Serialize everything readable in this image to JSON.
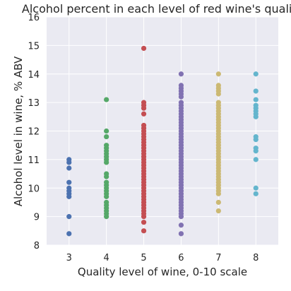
{
  "chart_data": {
    "type": "scatter",
    "title": "Alcohol percent in each level of red wine's quality",
    "xlabel": "Quality level of wine, 0-10 scale",
    "ylabel": "Alcohol level in wine, % ABV",
    "xlim": [
      2.4,
      8.6
    ],
    "ylim": [
      8,
      16
    ],
    "xticks": [
      "3",
      "4",
      "5",
      "6",
      "7",
      "8"
    ],
    "yticks": [
      "8",
      "9",
      "10",
      "11",
      "12",
      "13",
      "14",
      "15",
      "16"
    ],
    "grid": true,
    "legend": "none",
    "series": [
      {
        "x": 3,
        "color": "#4c72b0",
        "values": [
          8.4,
          9.0,
          9.7,
          9.8,
          9.9,
          10.0,
          10.2,
          10.7,
          10.9,
          11.0
        ]
      },
      {
        "x": 4,
        "color": "#55a868",
        "values": [
          9.0,
          9.1,
          9.2,
          9.3,
          9.4,
          9.5,
          9.7,
          9.8,
          9.9,
          10.0,
          10.1,
          10.2,
          10.4,
          10.5,
          10.9,
          11.0,
          11.1,
          11.2,
          11.3,
          11.4,
          11.5,
          11.8,
          12.0,
          13.1
        ]
      },
      {
        "x": 5,
        "color": "#c44e52",
        "values": [
          8.5,
          8.8,
          9.0,
          9.1,
          9.2,
          9.3,
          9.4,
          9.5,
          9.6,
          9.7,
          9.8,
          9.9,
          10.0,
          10.1,
          10.2,
          10.3,
          10.4,
          10.5,
          10.6,
          10.7,
          10.8,
          10.9,
          11.0,
          11.1,
          11.2,
          11.3,
          11.4,
          11.5,
          11.6,
          11.7,
          11.8,
          11.9,
          12.0,
          12.1,
          12.2,
          12.6,
          12.8,
          12.9,
          13.0,
          14.9
        ]
      },
      {
        "x": 6,
        "color": "#8172b2",
        "values": [
          8.4,
          8.7,
          9.0,
          9.1,
          9.2,
          9.3,
          9.4,
          9.5,
          9.6,
          9.7,
          9.8,
          9.9,
          10.0,
          10.1,
          10.2,
          10.3,
          10.4,
          10.5,
          10.6,
          10.7,
          10.8,
          10.9,
          11.0,
          11.1,
          11.2,
          11.3,
          11.4,
          11.5,
          11.6,
          11.7,
          11.8,
          11.9,
          12.0,
          12.1,
          12.2,
          12.3,
          12.4,
          12.5,
          12.6,
          12.7,
          12.8,
          12.9,
          13.0,
          13.2,
          13.3,
          13.4,
          13.5,
          13.6,
          14.0
        ]
      },
      {
        "x": 7,
        "color": "#ccb974",
        "values": [
          9.2,
          9.5,
          9.8,
          9.9,
          10.0,
          10.1,
          10.2,
          10.3,
          10.4,
          10.5,
          10.6,
          10.7,
          10.8,
          10.9,
          11.0,
          11.1,
          11.2,
          11.3,
          11.4,
          11.5,
          11.6,
          11.7,
          11.8,
          11.9,
          12.0,
          12.1,
          12.2,
          12.3,
          12.4,
          12.5,
          12.6,
          12.7,
          12.8,
          12.9,
          13.0,
          13.3,
          13.4,
          13.5,
          13.6,
          14.0
        ]
      },
      {
        "x": 8,
        "color": "#64b5cd",
        "values": [
          9.8,
          10.0,
          11.0,
          11.3,
          11.4,
          11.7,
          11.8,
          12.5,
          12.6,
          12.7,
          12.8,
          12.9,
          13.1,
          13.4,
          14.0
        ]
      }
    ]
  },
  "colors": {
    "plot_background": "#eaeaf2",
    "grid": "#ffffff",
    "text": "#262626"
  }
}
